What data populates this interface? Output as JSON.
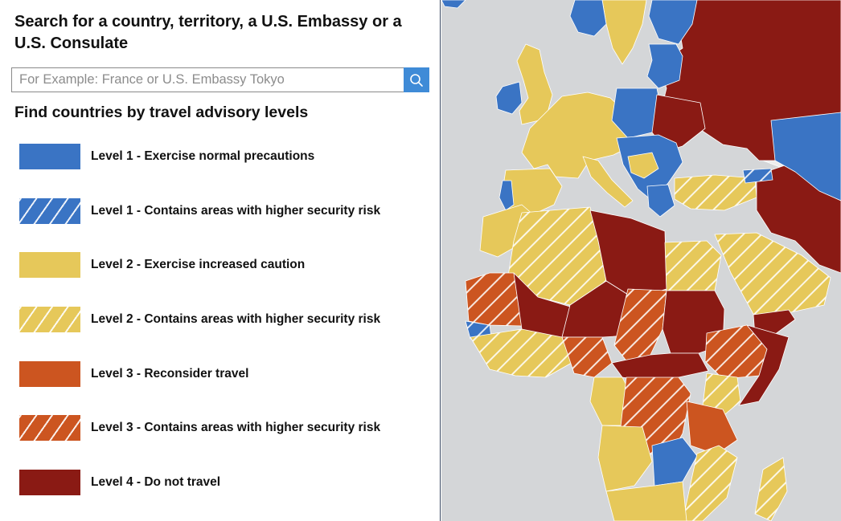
{
  "search": {
    "heading": "Search for a country, territory, a U.S. Embassy or a U.S. Consulate",
    "placeholder": "For Example: France or U.S. Embassy Tokyo",
    "button_icon": "search-icon"
  },
  "legend": {
    "heading": "Find countries by travel advisory levels",
    "items": [
      {
        "label": "Level 1 - Exercise normal precautions",
        "color": "#3a74c4",
        "hatched": false
      },
      {
        "label": "Level 1 - Contains areas with higher security risk",
        "color": "#3a74c4",
        "hatched": true
      },
      {
        "label": "Level 2 - Exercise increased caution",
        "color": "#e6c85a",
        "hatched": false
      },
      {
        "label": "Level 2 - Contains areas with higher security risk",
        "color": "#e6c85a",
        "hatched": true
      },
      {
        "label": "Level 3 - Reconsider travel",
        "color": "#cc5520",
        "hatched": false
      },
      {
        "label": "Level 3 - Contains areas with higher security risk",
        "color": "#cc5520",
        "hatched": true
      },
      {
        "label": "Level 4 - Do not travel",
        "color": "#8a1a14",
        "hatched": false
      }
    ]
  },
  "map": {
    "ocean_color": "#d4d6d8",
    "colors": {
      "level1": "#3a74c4",
      "level2": "#e6c85a",
      "level3": "#cc5520",
      "level4": "#8a1a14",
      "other_land": "#ededed"
    }
  }
}
